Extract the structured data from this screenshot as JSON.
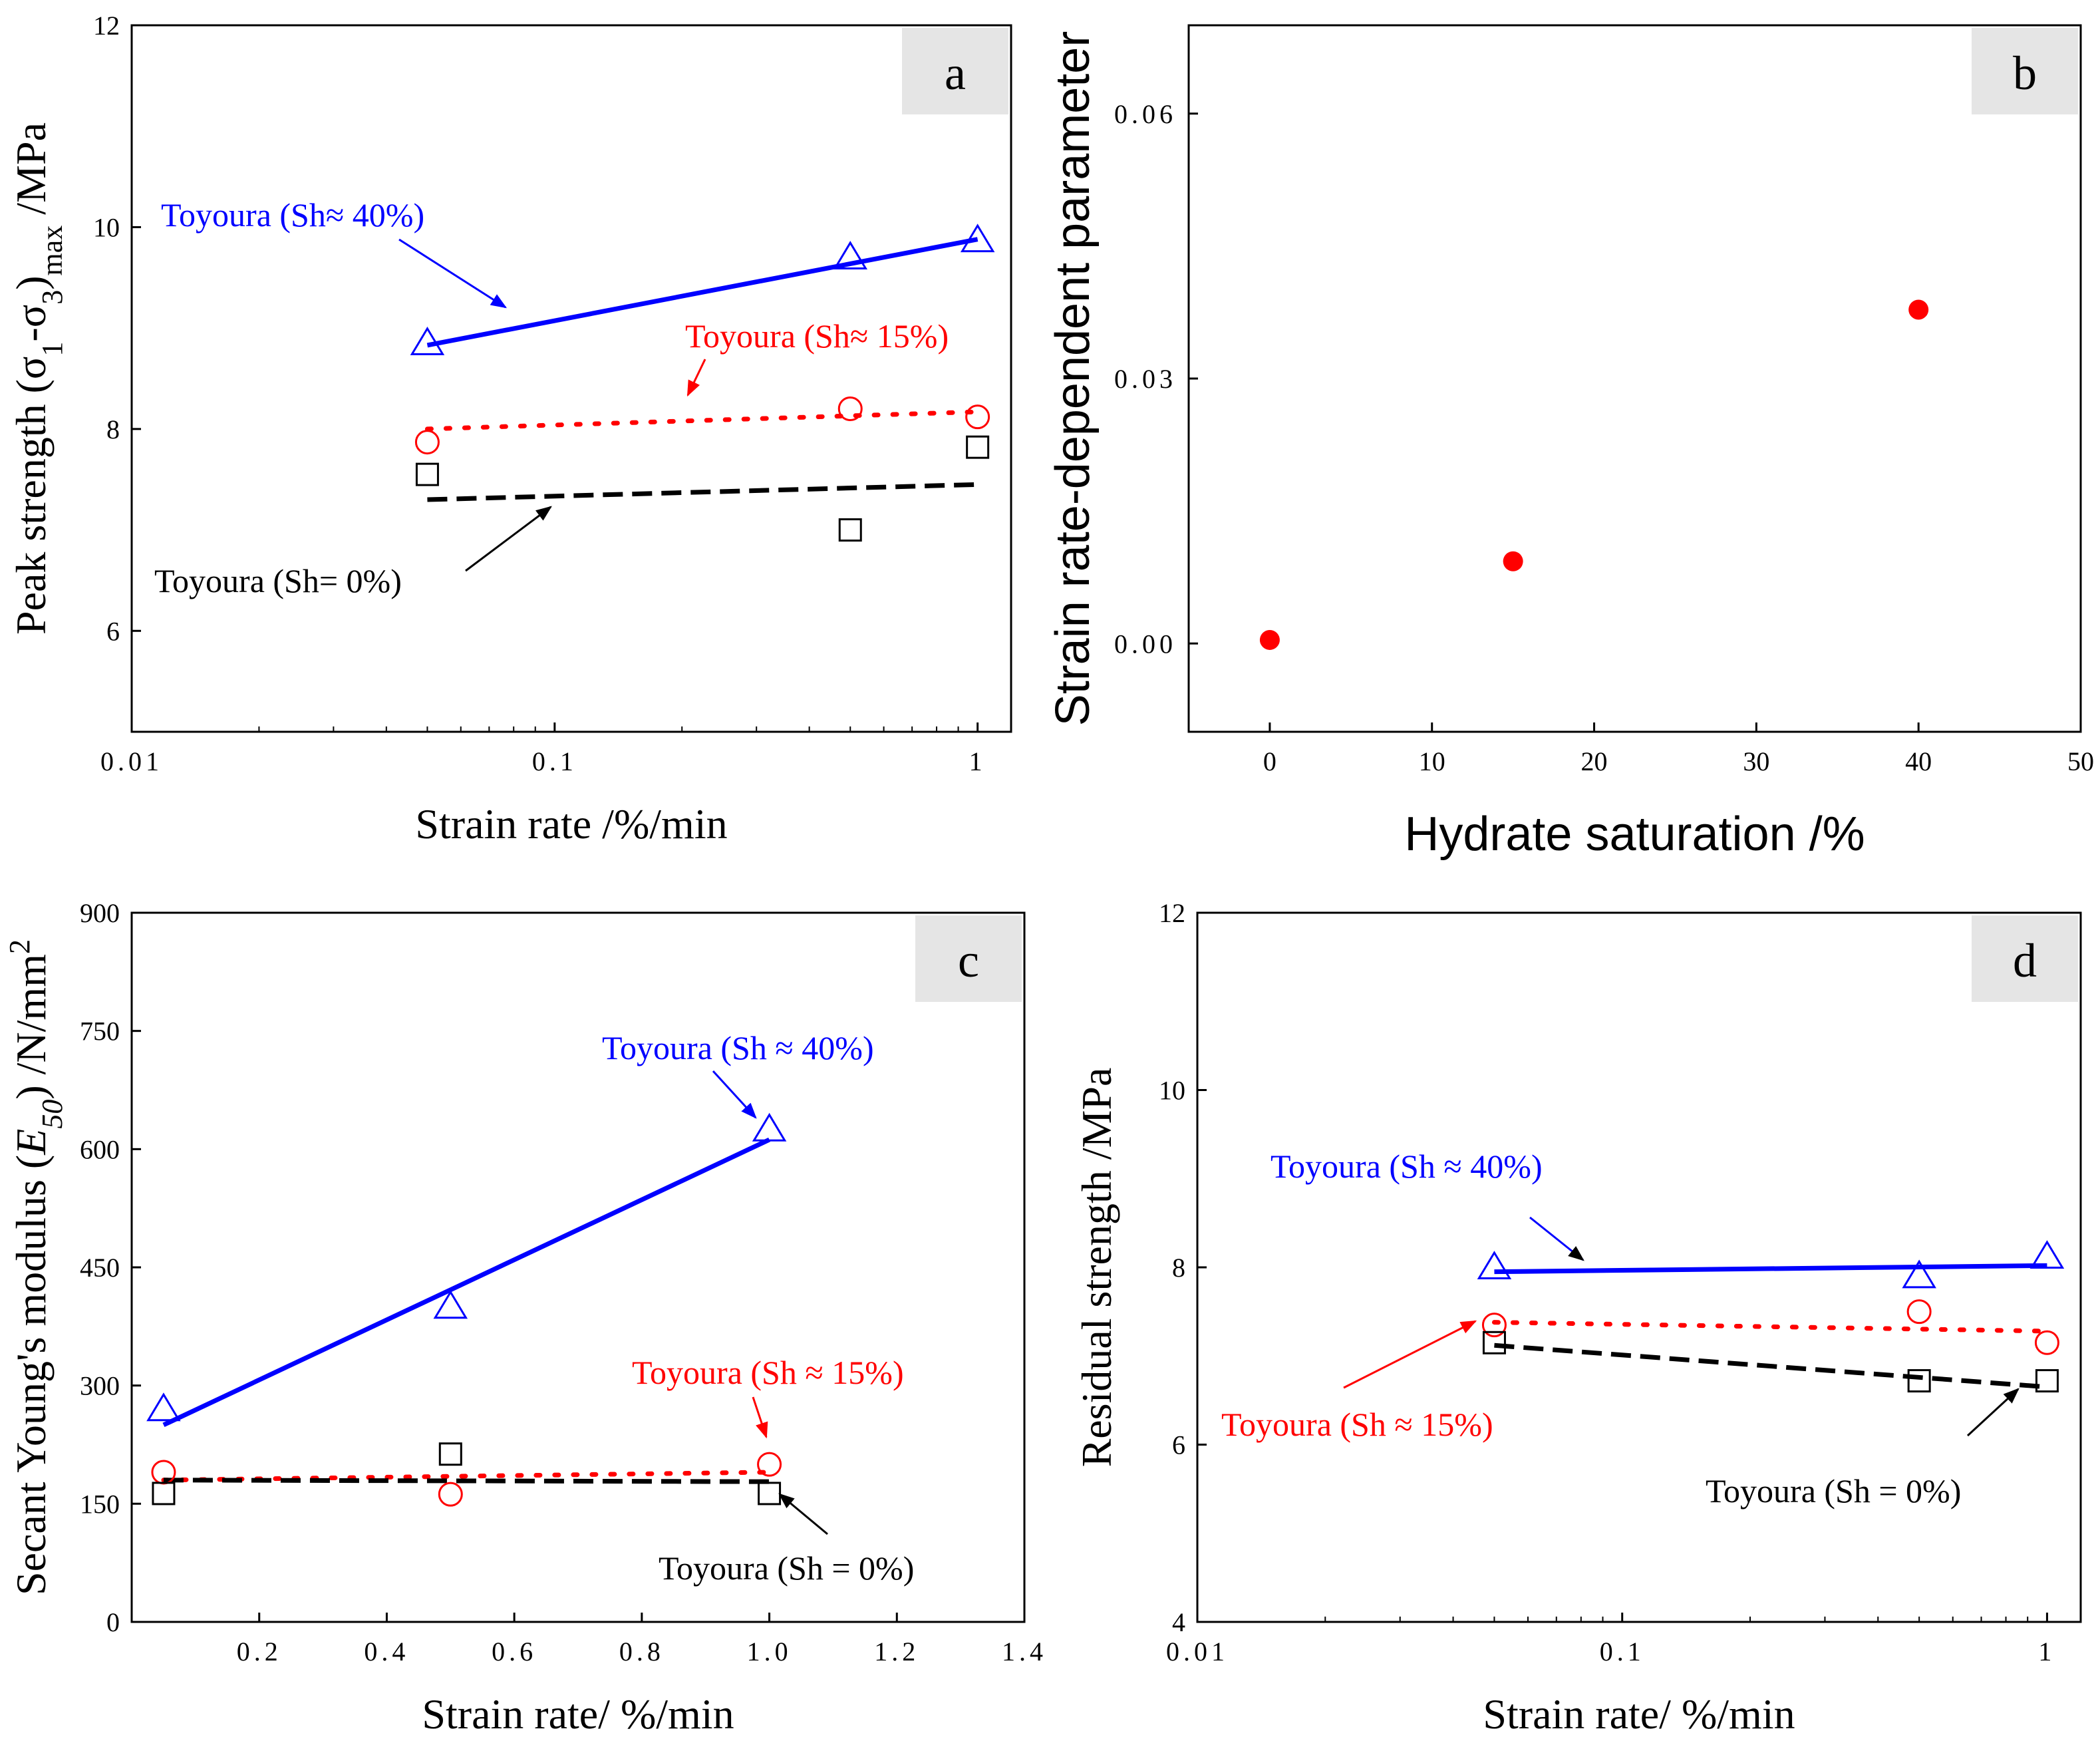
{
  "chart_data": [
    {
      "id": "a",
      "type": "scatter",
      "panel_label": "a",
      "xscale": "log",
      "xlim": [
        0.01,
        1.2
      ],
      "ylim": [
        5,
        12
      ],
      "xticks": [
        0.01,
        0.1,
        1
      ],
      "xtick_labels": [
        "0.01",
        "0.1",
        "1"
      ],
      "yticks": [
        6,
        8,
        10,
        12
      ],
      "ytick_labels": [
        "6",
        "8",
        "10",
        "12"
      ],
      "xlabel": "Strain rate /%/min",
      "ylabel": "Peak strength (σ1-σ3)max /MPa",
      "ylabel_parts": {
        "prefix": "Peak strength (σ",
        "sub1": "1",
        "mid": "-σ",
        "sub2": "3",
        "close": ")",
        "sub3": "max",
        "suffix": " /MPa"
      },
      "series": [
        {
          "name": "Toyoura (Sh≈ 40%)",
          "color": "#0000ff",
          "marker": "triangle",
          "line": "solid",
          "x": [
            0.05,
            0.5,
            1
          ],
          "y": [
            8.85,
            9.7,
            9.87
          ],
          "fit": {
            "x": [
              0.05,
              1
            ],
            "y": [
              8.83,
              9.88
            ]
          }
        },
        {
          "name": "Toyoura (Sh≈ 15%)",
          "color": "#ff0000",
          "marker": "circle",
          "line": "dotted",
          "x": [
            0.05,
            0.5,
            1
          ],
          "y": [
            7.87,
            8.2,
            8.12
          ],
          "fit": {
            "x": [
              0.05,
              1
            ],
            "y": [
              8.0,
              8.17
            ]
          }
        },
        {
          "name": "Toyoura (Sh= 0%)",
          "color": "#000000",
          "marker": "square",
          "line": "dashed",
          "x": [
            0.05,
            0.5,
            1
          ],
          "y": [
            7.55,
            7.0,
            7.82
          ],
          "fit": {
            "x": [
              0.05,
              1
            ],
            "y": [
              7.3,
              7.45
            ]
          }
        }
      ],
      "annotations": [
        {
          "text": "Toyoura (Sh≈ 40%)",
          "color": "#0000ff"
        },
        {
          "text": "Toyoura (Sh≈ 15%)",
          "color": "#ff0000"
        },
        {
          "text": "Toyoura (Sh= 0%)",
          "color": "#000000"
        }
      ]
    },
    {
      "id": "b",
      "type": "scatter",
      "panel_label": "b",
      "xscale": "linear",
      "xlim": [
        -5,
        50
      ],
      "ylim": [
        -0.01,
        0.07
      ],
      "xticks": [
        0,
        10,
        20,
        30,
        40,
        50
      ],
      "xtick_labels": [
        "0",
        "10",
        "20",
        "30",
        "40",
        "50"
      ],
      "yticks": [
        0.0,
        0.03,
        0.06
      ],
      "ytick_labels": [
        "0.00",
        "0.03",
        "0.06"
      ],
      "xlabel": "Hydrate saturation /%",
      "ylabel": "Strain rate-dependent parameter",
      "series": [
        {
          "name": "parameter",
          "color": "#ff0000",
          "marker": "filled-circle",
          "x": [
            0,
            15,
            40
          ],
          "y": [
            0.0004,
            0.0093,
            0.0378
          ]
        }
      ]
    },
    {
      "id": "c",
      "type": "scatter",
      "panel_label": "c",
      "xscale": "linear",
      "xlim": [
        0,
        1.4
      ],
      "ylim": [
        0,
        900
      ],
      "xticks": [
        0.2,
        0.4,
        0.6,
        0.8,
        1.0,
        1.2,
        1.4
      ],
      "xtick_labels": [
        "0.2",
        "0.4",
        "0.6",
        "0.8",
        "1.0",
        "1.2",
        "1.4"
      ],
      "yticks": [
        0,
        150,
        300,
        450,
        600,
        750,
        900
      ],
      "ytick_labels": [
        "0",
        "150",
        "300",
        "450",
        "600",
        "750",
        "900"
      ],
      "xlabel": "Strain rate/ %/min",
      "ylabel": "Secant Young's modulus (E50) /N/mm2",
      "ylabel_parts": {
        "prefix": "Secant Young's modulus (",
        "italic": "E",
        "sub": "50",
        "mid": ") /N/mm",
        "sup": "2"
      },
      "series": [
        {
          "name": "Toyoura (Sh ≈ 40%)",
          "color": "#0000ff",
          "marker": "triangle",
          "line": "solid",
          "x": [
            0.05,
            0.5,
            1.0
          ],
          "y": [
            270,
            400,
            625
          ],
          "fit": {
            "x": [
              0.05,
              1.0
            ],
            "y": [
              250,
              612
            ]
          }
        },
        {
          "name": "Toyoura (Sh ≈ 15%)",
          "color": "#ff0000",
          "marker": "circle",
          "line": "dotted",
          "x": [
            0.05,
            0.5,
            1.0
          ],
          "y": [
            190,
            162,
            200
          ],
          "fit": {
            "x": [
              0.05,
              1.0
            ],
            "y": [
              180,
              190
            ]
          }
        },
        {
          "name": "Toyoura (Sh = 0%)",
          "color": "#000000",
          "marker": "square",
          "line": "dashed",
          "x": [
            0.05,
            0.5,
            1.0
          ],
          "y": [
            163,
            213,
            163
          ],
          "fit": {
            "x": [
              0.05,
              1.0
            ],
            "y": [
              180,
              178
            ]
          }
        }
      ],
      "annotations": [
        {
          "text": "Toyoura (Sh ≈ 40%)",
          "color": "#0000ff"
        },
        {
          "text": "Toyoura (Sh ≈ 15%)",
          "color": "#ff0000"
        },
        {
          "text": "Toyoura (Sh = 0%)",
          "color": "#000000"
        }
      ]
    },
    {
      "id": "d",
      "type": "scatter",
      "panel_label": "d",
      "xscale": "log",
      "xlim": [
        0.01,
        1.2
      ],
      "ylim": [
        4,
        12
      ],
      "xticks": [
        0.01,
        0.1,
        1
      ],
      "xtick_labels": [
        "0.01",
        "0.1",
        "1"
      ],
      "yticks": [
        4,
        6,
        8,
        10,
        12
      ],
      "ytick_labels": [
        "4",
        "6",
        "8",
        "10",
        "12"
      ],
      "xlabel": "Strain rate/ %/min",
      "ylabel": "Residual strength /MPa",
      "series": [
        {
          "name": "Toyoura (Sh ≈ 40%)",
          "color": "#0000ff",
          "marker": "triangle",
          "line": "solid",
          "x": [
            0.05,
            0.5,
            1
          ],
          "y": [
            8.0,
            7.9,
            8.12
          ],
          "fit": {
            "x": [
              0.05,
              1
            ],
            "y": [
              7.95,
              8.02
            ]
          }
        },
        {
          "name": "Toyoura (Sh ≈ 15%)",
          "color": "#ff0000",
          "marker": "circle",
          "line": "dotted",
          "x": [
            0.05,
            0.5,
            1
          ],
          "y": [
            7.35,
            7.5,
            7.15
          ],
          "fit": {
            "x": [
              0.05,
              1
            ],
            "y": [
              7.38,
              7.28
            ]
          }
        },
        {
          "name": "Toyoura (Sh = 0%)",
          "color": "#000000",
          "marker": "square",
          "line": "dashed",
          "x": [
            0.05,
            0.5,
            1
          ],
          "y": [
            7.15,
            6.72,
            6.72
          ],
          "fit": {
            "x": [
              0.05,
              1
            ],
            "y": [
              7.12,
              6.65
            ]
          }
        }
      ],
      "annotations": [
        {
          "text": "Toyoura (Sh ≈ 40%)",
          "color": "#0000ff"
        },
        {
          "text": "Toyoura (Sh ≈ 15%)",
          "color": "#ff0000"
        },
        {
          "text": "Toyoura (Sh = 0%)",
          "color": "#000000"
        }
      ]
    }
  ]
}
